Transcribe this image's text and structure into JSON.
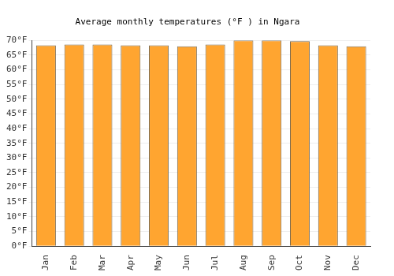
{
  "chart_data": {
    "type": "bar",
    "title": "Average monthly temperatures (°F ) in Ngara",
    "categories": [
      "Jan",
      "Feb",
      "Mar",
      "Apr",
      "May",
      "Jun",
      "Jul",
      "Aug",
      "Sep",
      "Oct",
      "Nov",
      "Dec"
    ],
    "values": [
      68.3,
      68.6,
      68.6,
      68.3,
      68.3,
      68.0,
      68.6,
      70.0,
      70.0,
      69.7,
      68.3,
      68.0
    ],
    "color": "#ffa530",
    "ylim": [
      0,
      70
    ],
    "yticks": [
      {
        "value": 0,
        "label": "0°F"
      },
      {
        "value": 5,
        "label": "5°F"
      },
      {
        "value": 10,
        "label": "10°F"
      },
      {
        "value": 15,
        "label": "15°F"
      },
      {
        "value": 20,
        "label": "20°F"
      },
      {
        "value": 25,
        "label": "25°F"
      },
      {
        "value": 30,
        "label": "30°F"
      },
      {
        "value": 35,
        "label": "35°F"
      },
      {
        "value": 40,
        "label": "40°F"
      },
      {
        "value": 45,
        "label": "45°F"
      },
      {
        "value": 50,
        "label": "50°F"
      },
      {
        "value": 55,
        "label": "55°F"
      },
      {
        "value": 60,
        "label": "60°F"
      },
      {
        "value": 65,
        "label": "65°F"
      },
      {
        "value": 70,
        "label": "70°F"
      }
    ],
    "grid": true
  }
}
